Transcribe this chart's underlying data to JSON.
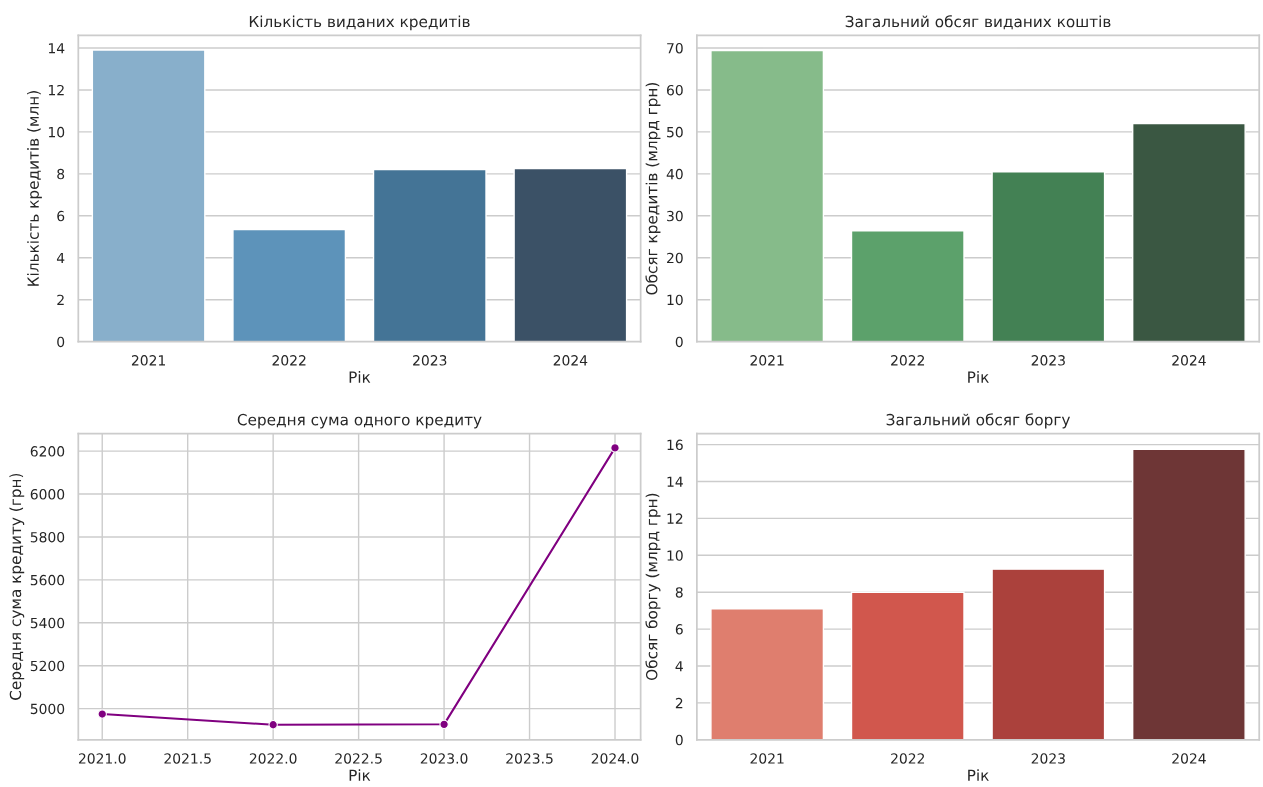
{
  "chart_data": [
    {
      "type": "bar",
      "title": "Кількість виданих кредитів",
      "xlabel": "Рік",
      "ylabel": "Кількість кредитів (млн)",
      "categories": [
        "2021",
        "2022",
        "2023",
        "2024"
      ],
      "values": [
        13.9,
        5.35,
        8.2,
        8.25
      ],
      "colors": [
        "#88afcb",
        "#5d93ba",
        "#447496",
        "#3b5166"
      ],
      "ylim": [
        0,
        14.6
      ],
      "yticks": [
        0,
        2,
        4,
        6,
        8,
        10,
        12,
        14
      ],
      "grid": "y"
    },
    {
      "type": "bar",
      "title": "Загальний обсяг виданих коштів",
      "xlabel": "Рік",
      "ylabel": "Обсяг кредитів (млрд грн)",
      "categories": [
        "2021",
        "2022",
        "2023",
        "2024"
      ],
      "values": [
        69.4,
        26.4,
        40.5,
        52.0
      ],
      "colors": [
        "#86bb8a",
        "#5ca16b",
        "#438154",
        "#3a5742"
      ],
      "ylim": [
        0,
        73
      ],
      "yticks": [
        0,
        10,
        20,
        30,
        40,
        50,
        60,
        70
      ],
      "grid": "y"
    },
    {
      "type": "line",
      "title": "Середня сума одного кредиту",
      "xlabel": "Рік",
      "ylabel": "Середня сума кредиту (грн)",
      "x": [
        2021,
        2022,
        2023,
        2024
      ],
      "series": [
        {
          "color": "#800080",
          "values": [
            4975,
            4925,
            4927,
            6215
          ]
        }
      ],
      "marker": "circle",
      "xlim": [
        2020.86,
        2024.15
      ],
      "xticks": [
        {
          "value": 2021,
          "label": "2021.0"
        },
        {
          "value": 2021.5,
          "label": "2021.5"
        },
        {
          "value": 2022,
          "label": "2022.0"
        },
        {
          "value": 2022.5,
          "label": "2022.5"
        },
        {
          "value": 2023,
          "label": "2023.0"
        },
        {
          "value": 2023.5,
          "label": "2023.5"
        },
        {
          "value": 2024,
          "label": "2024.0"
        }
      ],
      "ylim": [
        4855,
        6282
      ],
      "yticks": [
        5000,
        5200,
        5400,
        5600,
        5800,
        6000,
        6200
      ],
      "grid": true
    },
    {
      "type": "bar",
      "title": "Загальний обсяг боргу",
      "xlabel": "Рік",
      "ylabel": "Обсяг боргу (млрд грн)",
      "categories": [
        "2021",
        "2022",
        "2023",
        "2024"
      ],
      "values": [
        7.1,
        8.0,
        9.25,
        15.75
      ],
      "colors": [
        "#df7e6e",
        "#d1574d",
        "#ab413c",
        "#6e3636"
      ],
      "ylim": [
        0,
        16.6
      ],
      "yticks": [
        0,
        2,
        4,
        6,
        8,
        10,
        12,
        14,
        16
      ],
      "grid": "y"
    }
  ]
}
